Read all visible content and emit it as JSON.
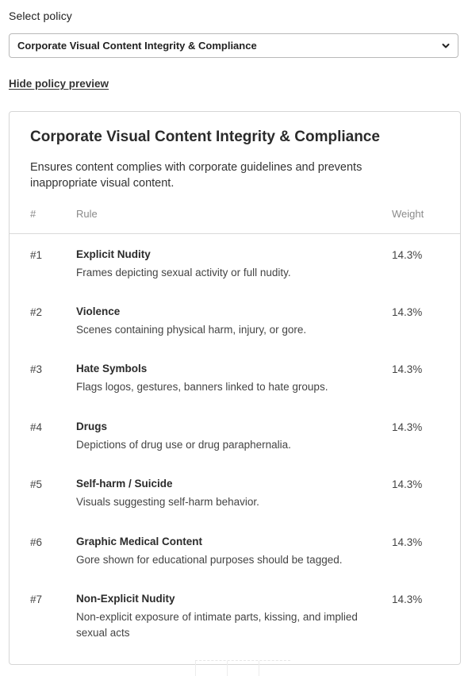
{
  "select": {
    "label": "Select policy",
    "value": "Corporate Visual Content Integrity & Compliance",
    "icon": "chevron-down-icon"
  },
  "toggle_label": "Hide policy preview",
  "policy": {
    "title": "Corporate Visual Content Integrity & Compliance",
    "description": "Ensures content complies with corporate guidelines and prevents inappropriate visual content.",
    "columns": {
      "num": "#",
      "rule": "Rule",
      "weight": "Weight"
    },
    "rules": [
      {
        "num": "#1",
        "name": "Explicit Nudity",
        "desc": "Frames depicting sexual activity or full nudity.",
        "weight": "14.3%"
      },
      {
        "num": "#2",
        "name": "Violence",
        "desc": "Scenes containing physical harm, injury, or gore.",
        "weight": "14.3%"
      },
      {
        "num": "#3",
        "name": "Hate Symbols",
        "desc": "Flags logos, gestures, banners linked to hate groups.",
        "weight": "14.3%"
      },
      {
        "num": "#4",
        "name": "Drugs",
        "desc": "Depictions of drug use or drug paraphernalia.",
        "weight": "14.3%"
      },
      {
        "num": "#5",
        "name": "Self-harm / Suicide",
        "desc": "Visuals suggesting self-harm behavior.",
        "weight": "14.3%"
      },
      {
        "num": "#6",
        "name": "Graphic Medical Content",
        "desc": "Gore shown for educational purposes should be tagged.",
        "weight": "14.3%"
      },
      {
        "num": "#7",
        "name": "Non-Explicit Nudity",
        "desc": "Non-explicit exposure of intimate parts, kissing, and implied sexual acts",
        "weight": "14.3%"
      }
    ]
  }
}
